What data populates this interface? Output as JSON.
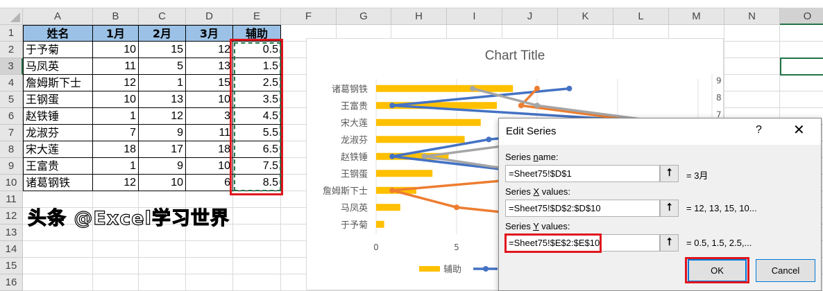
{
  "sheet": {
    "columns": [
      "A",
      "B",
      "C",
      "D",
      "E",
      "F",
      "G",
      "H",
      "I",
      "J",
      "K",
      "L",
      "M",
      "N",
      "O"
    ],
    "rows": [
      1,
      2,
      3,
      4,
      5,
      6,
      7,
      8,
      9,
      10,
      11,
      12,
      13,
      14,
      15,
      16
    ],
    "selected_cell": "O3",
    "headers": [
      "姓名",
      "1月",
      "2月",
      "3月",
      "辅助"
    ],
    "data": [
      [
        "于予菊",
        "10",
        "15",
        "12",
        "0.5"
      ],
      [
        "马凤英",
        "11",
        "5",
        "13",
        "1.5"
      ],
      [
        "詹姆斯下士",
        "12",
        "1",
        "15",
        "2.5"
      ],
      [
        "王钢蛋",
        "10",
        "13",
        "10",
        "3.5"
      ],
      [
        "赵铁锤",
        "1",
        "12",
        "3",
        "4.5"
      ],
      [
        "龙淑芬",
        "7",
        "9",
        "11",
        "5.5"
      ],
      [
        "宋大莲",
        "18",
        "17",
        "18",
        "6.5"
      ],
      [
        "王富贵",
        "1",
        "9",
        "10",
        "7.5"
      ],
      [
        "诸葛钢铁",
        "12",
        "10",
        "6",
        "8.5"
      ]
    ],
    "header_fill": "#9bc2e6"
  },
  "chart_data": {
    "type": "bar",
    "title": "Chart Title",
    "categories": [
      "于予菊",
      "马凤英",
      "詹姆斯下士",
      "王钢蛋",
      "赵铁锤",
      "龙淑芬",
      "宋大莲",
      "王富贵",
      "诸葛钢铁"
    ],
    "bar_series": {
      "name": "辅助",
      "values": [
        0.5,
        1.5,
        2.5,
        3.5,
        4.5,
        5.5,
        6.5,
        7.5,
        8.5
      ],
      "color": "#ffc000"
    },
    "scatter_series": [
      {
        "name": "1月",
        "color": "#4472c4",
        "x": [
          10,
          11,
          12,
          10,
          1,
          7,
          18,
          1,
          12
        ],
        "y": [
          0.5,
          1.5,
          2.5,
          3.5,
          4.5,
          5.5,
          6.5,
          7.5,
          8.5
        ]
      },
      {
        "name": "2月",
        "color": "#ed7d31",
        "x": [
          15,
          5,
          1,
          13,
          12,
          9,
          17,
          9,
          10
        ],
        "y": [
          0.5,
          1.5,
          2.5,
          3.5,
          4.5,
          5.5,
          6.5,
          7.5,
          8.5
        ]
      },
      {
        "name": "3月",
        "color": "#a5a5a5",
        "x": [
          12,
          13,
          15,
          10,
          3,
          11,
          18,
          10,
          6
        ],
        "y": [
          0.5,
          1.5,
          2.5,
          3.5,
          4.5,
          5.5,
          6.5,
          7.5,
          8.5
        ]
      }
    ],
    "x_ticks": [
      "0",
      "5"
    ],
    "xlim": [
      0,
      20
    ],
    "secondary_y_ticks": [
      "9",
      "8",
      "7"
    ],
    "secondary_ylim": [
      0,
      9
    ],
    "legend": {
      "position": "bottom",
      "entries": [
        "辅助"
      ]
    },
    "grid": true
  },
  "dialog": {
    "title": "Edit Series",
    "help": "?",
    "close": "✕",
    "series_name_label_pre": "Series ",
    "series_name_label_key": "n",
    "series_name_label_post": "ame:",
    "series_name_value": "=Sheet75!$D$1",
    "series_name_result": "= 3月",
    "x_label_pre": "Series ",
    "x_label_key": "X",
    "x_label_post": " values:",
    "x_value": "=Sheet75!$D$2:$D$10",
    "x_result": "= 12, 13, 15, 10...",
    "y_label_pre": "Series ",
    "y_label_key": "Y",
    "y_label_post": " values:",
    "y_value": "=Sheet75!$E$2:$E$10",
    "y_result": "= 0.5, 1.5, 2.5,...",
    "ok": "OK",
    "cancel": "Cancel",
    "collapse_icon": "⭡"
  },
  "watermark": "头条 @Excel学习世界"
}
